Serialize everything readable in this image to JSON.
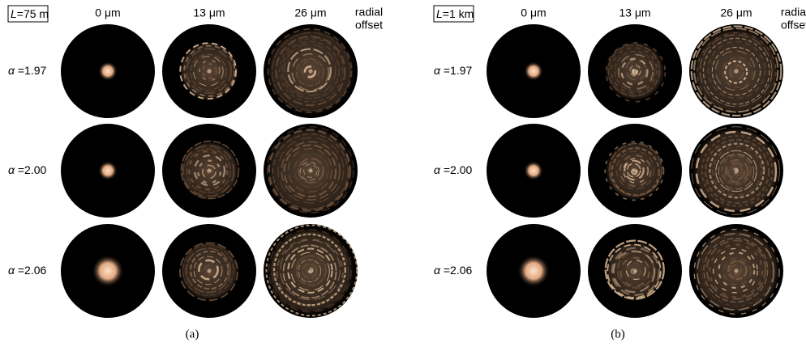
{
  "panels": [
    {
      "length_label": {
        "symbol": "L",
        "text": "=75 m"
      },
      "columns": [
        "0 μm",
        "13 μm",
        "26 μm"
      ],
      "offset_label": [
        "radial",
        "offset"
      ],
      "rows": [
        {
          "symbol": "α",
          "text": " =1.97"
        },
        {
          "symbol": "α",
          "text": " =2.00"
        },
        {
          "symbol": "α",
          "text": " =2.06"
        }
      ],
      "caption": "(a)"
    },
    {
      "length_label": {
        "symbol": "L",
        "text": "=1 km"
      },
      "columns": [
        "0 μm",
        "13 μm",
        "26 μm"
      ],
      "offset_label": [
        "radial",
        "offset"
      ],
      "rows": [
        {
          "symbol": "α",
          "text": " =1.97"
        },
        {
          "symbol": "α",
          "text": " =2.00"
        },
        {
          "symbol": "α",
          "text": " =2.06"
        }
      ],
      "caption": "(b)"
    }
  ]
}
